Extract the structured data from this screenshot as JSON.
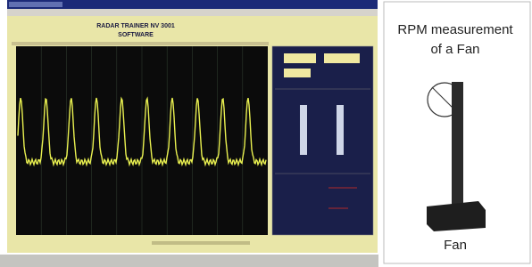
{
  "window": {
    "title_line1": "RADAR TRAINER NV 3001",
    "title_line2": "SOFTWARE"
  },
  "caption": {
    "line1": "RPM measurement",
    "line2": "of  a Fan",
    "label": "Fan"
  }
}
